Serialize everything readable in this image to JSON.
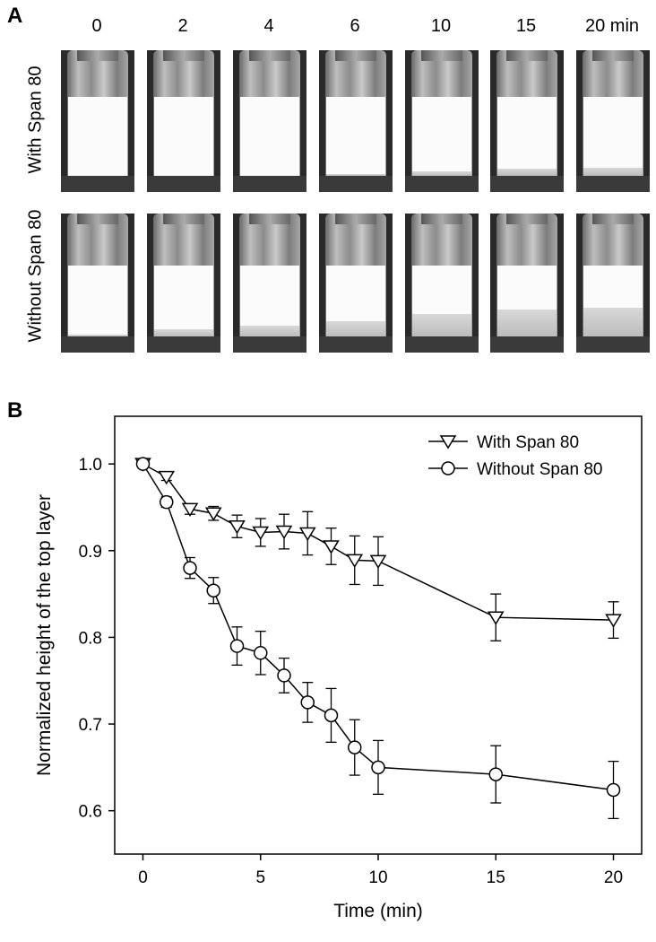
{
  "panel_a": {
    "label": "A",
    "time_labels": [
      "0",
      "2",
      "4",
      "6",
      "10",
      "15",
      "20 min"
    ],
    "row_labels": [
      "With Span 80",
      "Without Span 80"
    ],
    "with_span80_clear_fraction": [
      0.0,
      0.0,
      0.0,
      0.02,
      0.06,
      0.09,
      0.1
    ],
    "without_span80_clear_fraction": [
      0.03,
      0.1,
      0.15,
      0.22,
      0.32,
      0.38,
      0.4
    ]
  },
  "panel_b": {
    "label": "B"
  },
  "chart_data": {
    "type": "line",
    "title": "",
    "xlabel": "Time (min)",
    "ylabel": "Normalized height of the top layer",
    "xlim": [
      -1.2,
      21.2
    ],
    "ylim": [
      0.55,
      1.055
    ],
    "xticks": [
      0,
      5,
      10,
      15,
      20
    ],
    "yticks": [
      0.6,
      0.7,
      0.8,
      0.9,
      1.0
    ],
    "ytick_labels": [
      "0.6",
      "0.7",
      "0.8",
      "0.9",
      "1.0"
    ],
    "legend_position": "top-right",
    "series": [
      {
        "name": "With Span 80",
        "marker": "triangle-down",
        "x": [
          0,
          1,
          2,
          3,
          4,
          5,
          6,
          7,
          8,
          9,
          10,
          15,
          20
        ],
        "y": [
          1.0,
          0.985,
          0.948,
          0.943,
          0.928,
          0.921,
          0.922,
          0.92,
          0.905,
          0.889,
          0.888,
          0.823,
          0.82
        ],
        "err": [
          0.0,
          0.004,
          0.006,
          0.008,
          0.013,
          0.016,
          0.02,
          0.025,
          0.021,
          0.028,
          0.028,
          0.027,
          0.021
        ]
      },
      {
        "name": "Without Span 80",
        "marker": "circle",
        "x": [
          0,
          1,
          2,
          3,
          4,
          5,
          6,
          7,
          8,
          9,
          10,
          15,
          20
        ],
        "y": [
          1.0,
          0.956,
          0.88,
          0.854,
          0.79,
          0.782,
          0.756,
          0.725,
          0.71,
          0.673,
          0.65,
          0.642,
          0.624
        ],
        "err": [
          0.0,
          0.006,
          0.012,
          0.015,
          0.022,
          0.025,
          0.02,
          0.023,
          0.031,
          0.032,
          0.031,
          0.033,
          0.033
        ]
      }
    ]
  }
}
